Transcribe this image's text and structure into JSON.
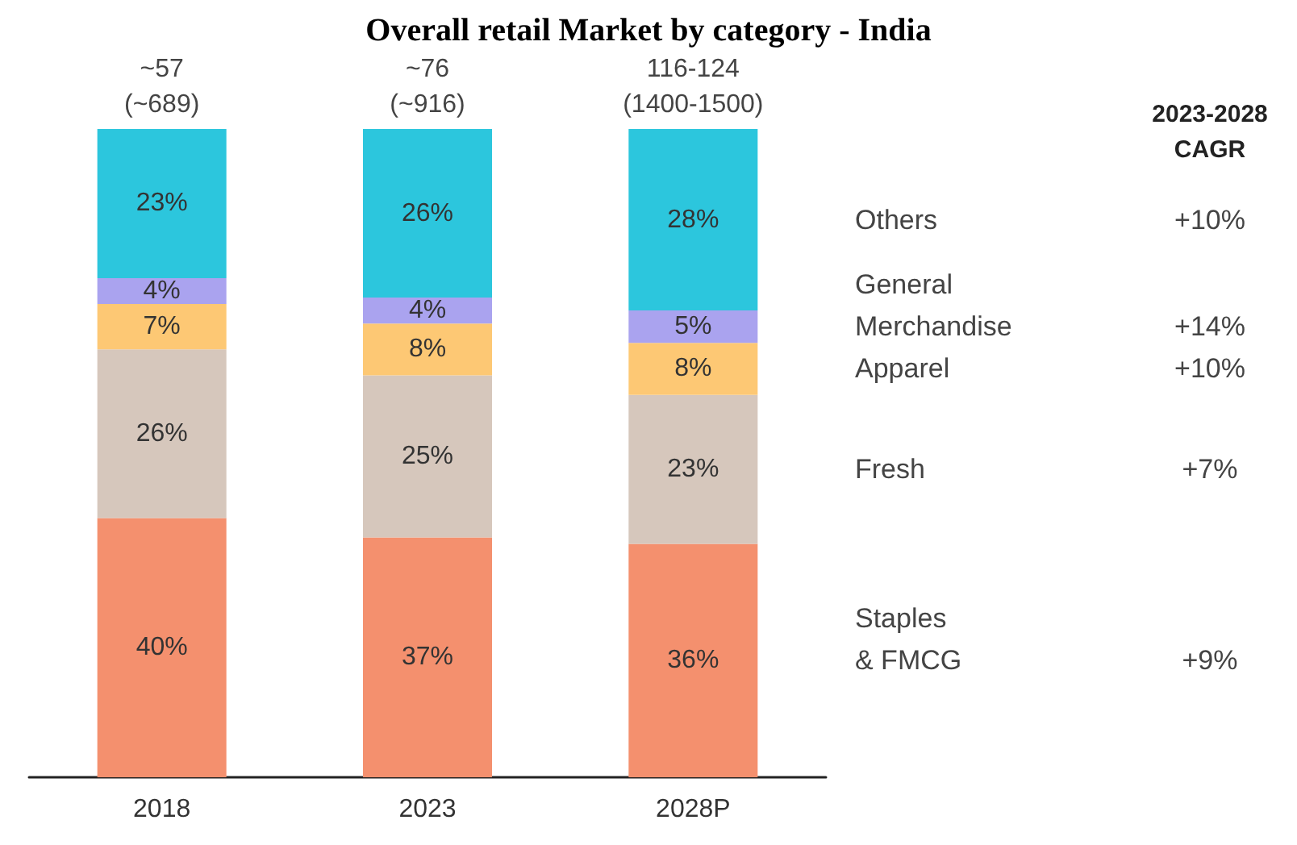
{
  "chart_data": {
    "type": "bar",
    "title": "Overall retail Market by category - India",
    "stacked": true,
    "data_labels": true,
    "categories": [
      "2018",
      "2023",
      "2028P"
    ],
    "series": [
      {
        "name": "Staples\n& FMCG",
        "color": "#f4906e",
        "values": [
          40,
          37,
          36
        ],
        "value_labels": [
          "40%",
          "37%",
          "36%"
        ]
      },
      {
        "name": "Fresh",
        "color": "#d6c7bc",
        "values": [
          26,
          25,
          23
        ],
        "value_labels": [
          "26%",
          "25%",
          "23%"
        ]
      },
      {
        "name": "Apparel",
        "color": "#fdc874",
        "values": [
          7,
          8,
          8
        ],
        "value_labels": [
          "7%",
          "8%",
          "8%"
        ]
      },
      {
        "name": "General\nMerchandise",
        "color": "#aaa3ef",
        "values": [
          4,
          4,
          5
        ],
        "value_labels": [
          "4%",
          "4%",
          "5%"
        ]
      },
      {
        "name": "Others",
        "color": "#2cc6dd",
        "values": [
          23,
          26,
          28
        ],
        "value_labels": [
          "23%",
          "26%",
          "28%"
        ]
      }
    ],
    "totals": [
      "~57\n(~689)",
      "~76\n(~916)",
      "116-124\n(1400-1500)"
    ],
    "annotations": [
      "2023-2028\nCAGR",
      "+9%",
      "+7%",
      "+10%",
      "+14%",
      "+10%"
    ]
  }
}
